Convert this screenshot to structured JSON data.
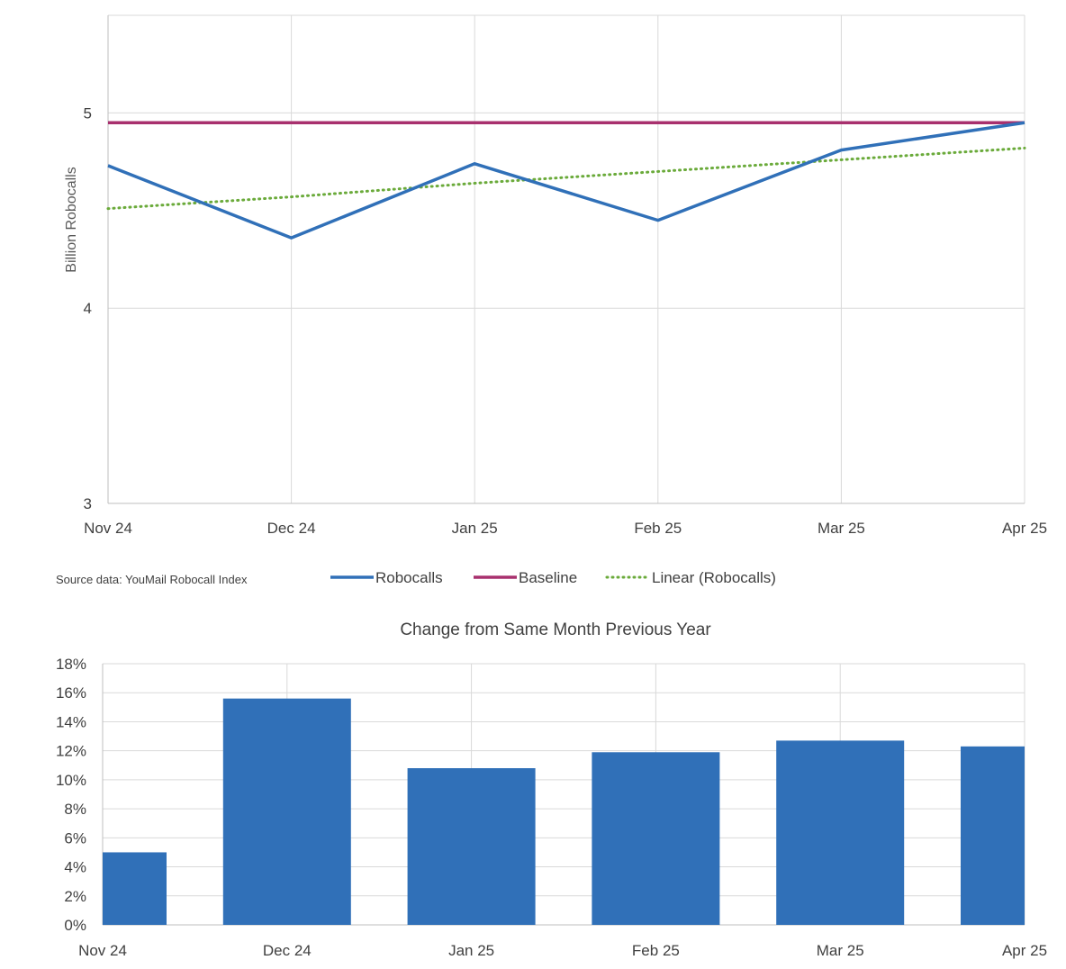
{
  "chart_data": [
    {
      "type": "line",
      "title": "",
      "xlabel": "",
      "ylabel": "Billion Robocalls",
      "categories": [
        "Nov 24",
        "Dec 24",
        "Jan 25",
        "Feb 25",
        "Mar 25",
        "Apr 25"
      ],
      "ylim": [
        3,
        5.5
      ],
      "yticks": [
        "3",
        "4",
        "5"
      ],
      "grid": true,
      "legend_position": "bottom",
      "series": [
        {
          "name": "Robocalls",
          "values": [
            4.73,
            4.36,
            4.74,
            4.45,
            4.81,
            4.95
          ],
          "color": "#3070b8",
          "style": "solid"
        },
        {
          "name": "Baseline",
          "values": [
            4.95,
            4.95,
            4.95,
            4.95,
            4.95,
            4.95
          ],
          "color": "#a8306e",
          "style": "solid"
        },
        {
          "name": "Linear (Robocalls)",
          "values": [
            4.51,
            4.57,
            4.64,
            4.7,
            4.76,
            4.82
          ],
          "color": "#6aaa3a",
          "style": "dotted"
        }
      ],
      "source_note": "Source data: YouMail Robocall Index"
    },
    {
      "type": "bar",
      "title": "Change from Same Month Previous Year",
      "xlabel": "",
      "ylabel": "",
      "categories": [
        "Nov 24",
        "Dec 24",
        "Jan 25",
        "Feb 25",
        "Mar 25",
        "Apr 25"
      ],
      "values": [
        5.0,
        15.6,
        10.8,
        11.9,
        12.7,
        12.3
      ],
      "unit": "%",
      "ylim": [
        0,
        18
      ],
      "yticks": [
        "0%",
        "2%",
        "4%",
        "6%",
        "8%",
        "10%",
        "12%",
        "14%",
        "16%",
        "18%"
      ],
      "grid": true,
      "color": "#3070b8"
    }
  ]
}
